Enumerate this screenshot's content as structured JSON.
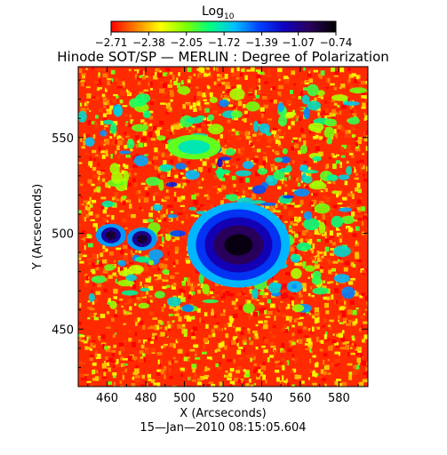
{
  "chart_data": {
    "type": "heatmap",
    "title": "Hinode SOT/SP — MERLIN : Degree of Polarization",
    "xlabel": "X (Arcseconds)",
    "ylabel": "Y (Arcseconds)",
    "footer": "15—Jan—2010 08:15:05.604",
    "xlim": [
      445,
      595
    ],
    "ylim": [
      420,
      587
    ],
    "x_ticks": [
      460,
      480,
      500,
      520,
      540,
      560,
      580
    ],
    "y_ticks": [
      450,
      500,
      550
    ],
    "x_tick_labels": [
      "460",
      "480",
      "500",
      "520",
      "540",
      "560",
      "580"
    ],
    "y_tick_labels": [
      "450",
      "500",
      "550"
    ],
    "colorbar": {
      "label_main": "Log",
      "label_sub": "10",
      "ticks": [
        -2.71,
        -2.38,
        -2.05,
        -1.72,
        -1.39,
        -1.07,
        -0.74
      ],
      "tick_labels": [
        "−2.71",
        "−2.38",
        "−2.05",
        "−1.72",
        "−1.39",
        "−1.07",
        "−0.74"
      ],
      "colormap": [
        "#ff0000",
        "#ff8000",
        "#ffff00",
        "#80ff00",
        "#00ff80",
        "#00c0ff",
        "#0040ff",
        "#1000c0",
        "#2a0060",
        "#000000"
      ]
    },
    "features": [
      {
        "name": "sunspot umbra",
        "x": 528,
        "y": 494,
        "log_polarization": -0.85
      },
      {
        "name": "penumbra ring",
        "x": 525,
        "y": 495,
        "log_polarization": -1.25
      },
      {
        "name": "pore",
        "x": 478,
        "y": 497,
        "log_polarization": -1.05
      },
      {
        "name": "pore",
        "x": 462,
        "y": 499,
        "log_polarization": -1.1
      },
      {
        "name": "plage network",
        "x": 505,
        "y": 545,
        "log_polarization": -1.7
      },
      {
        "name": "quiet sun",
        "x": 560,
        "y": 440,
        "log_polarization": -2.6
      }
    ]
  }
}
